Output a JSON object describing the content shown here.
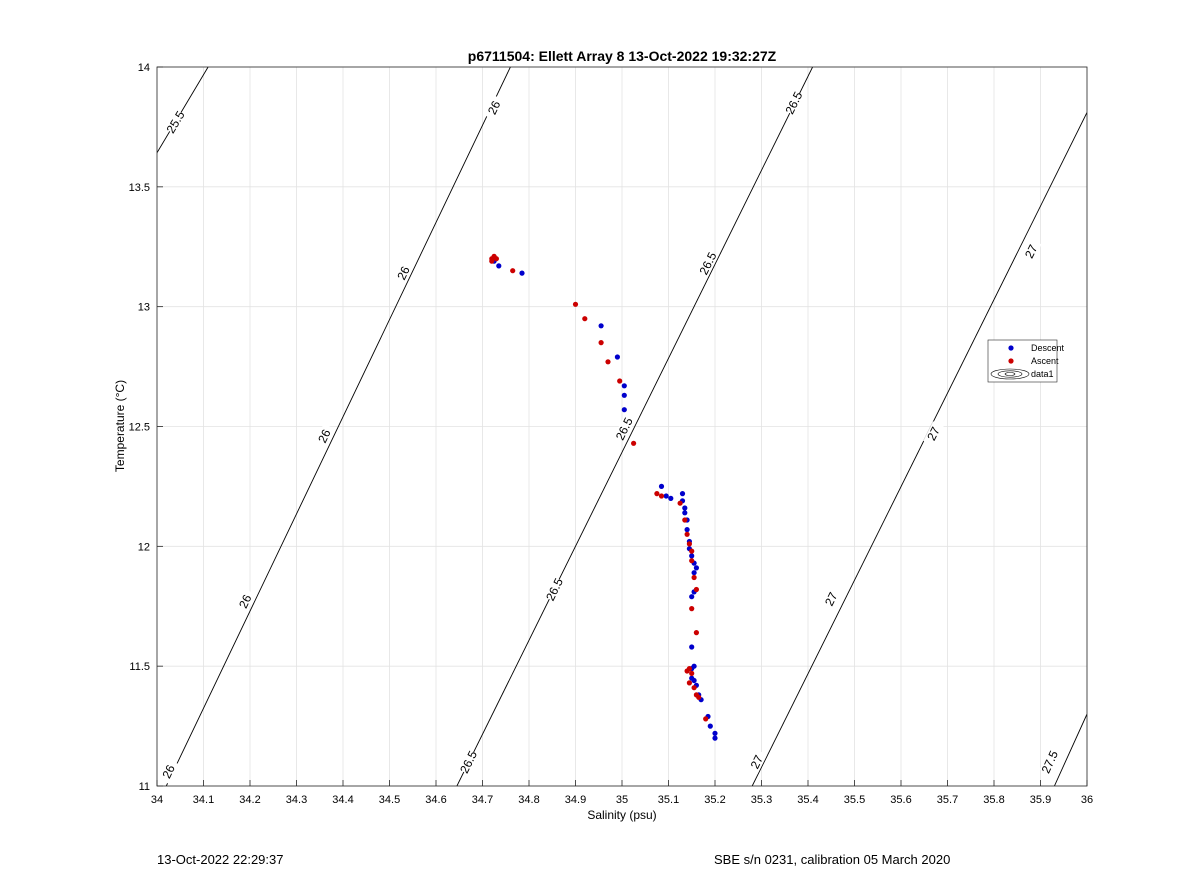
{
  "chart_data": {
    "type": "scatter",
    "title": "p6711504: Ellett Array 8 13-Oct-2022 19:32:27Z",
    "xlabel": "Salinity (psu)",
    "ylabel": "Temperature (°C)",
    "xlim": [
      34,
      36
    ],
    "ylim": [
      11,
      14
    ],
    "xticks": [
      "34",
      "34.1",
      "34.2",
      "34.3",
      "34.4",
      "34.5",
      "34.6",
      "34.7",
      "34.8",
      "34.9",
      "35",
      "35.1",
      "35.2",
      "35.3",
      "35.4",
      "35.5",
      "35.6",
      "35.7",
      "35.8",
      "35.9",
      "36"
    ],
    "yticks": [
      "11",
      "11.5",
      "12",
      "12.5",
      "13",
      "13.5",
      "14"
    ],
    "grid": true,
    "legend_position": "right",
    "series": [
      {
        "name": "Descent",
        "color": "#0000cc",
        "marker": "dot",
        "points": [
          [
            34.725,
            13.19
          ],
          [
            34.735,
            13.17
          ],
          [
            34.785,
            13.14
          ],
          [
            34.955,
            12.92
          ],
          [
            34.99,
            12.79
          ],
          [
            35.005,
            12.67
          ],
          [
            35.005,
            12.63
          ],
          [
            35.005,
            12.57
          ],
          [
            35.085,
            12.25
          ],
          [
            35.095,
            12.21
          ],
          [
            35.105,
            12.2
          ],
          [
            35.13,
            12.22
          ],
          [
            35.13,
            12.19
          ],
          [
            35.135,
            12.16
          ],
          [
            35.135,
            12.14
          ],
          [
            35.14,
            12.11
          ],
          [
            35.14,
            12.07
          ],
          [
            35.145,
            12.02
          ],
          [
            35.145,
            11.99
          ],
          [
            35.15,
            11.96
          ],
          [
            35.155,
            11.93
          ],
          [
            35.16,
            11.91
          ],
          [
            35.155,
            11.89
          ],
          [
            35.155,
            11.81
          ],
          [
            35.15,
            11.79
          ],
          [
            35.15,
            11.58
          ],
          [
            35.155,
            11.5
          ],
          [
            35.15,
            11.49
          ],
          [
            35.15,
            11.45
          ],
          [
            35.155,
            11.44
          ],
          [
            35.16,
            11.42
          ],
          [
            35.165,
            11.38
          ],
          [
            35.17,
            11.36
          ],
          [
            35.185,
            11.29
          ],
          [
            35.19,
            11.25
          ],
          [
            35.2,
            11.22
          ],
          [
            35.2,
            11.2
          ]
        ]
      },
      {
        "name": "Ascent",
        "color": "#cc0000",
        "marker": "dot",
        "points": [
          [
            34.72,
            13.2
          ],
          [
            34.725,
            13.21
          ],
          [
            34.73,
            13.2
          ],
          [
            34.72,
            13.19
          ],
          [
            34.765,
            13.15
          ],
          [
            34.9,
            13.01
          ],
          [
            34.92,
            12.95
          ],
          [
            34.955,
            12.85
          ],
          [
            34.97,
            12.77
          ],
          [
            34.995,
            12.69
          ],
          [
            35.025,
            12.43
          ],
          [
            35.075,
            12.22
          ],
          [
            35.085,
            12.21
          ],
          [
            35.125,
            12.18
          ],
          [
            35.135,
            12.11
          ],
          [
            35.14,
            12.05
          ],
          [
            35.145,
            12.01
          ],
          [
            35.15,
            11.98
          ],
          [
            35.15,
            11.94
          ],
          [
            35.155,
            11.87
          ],
          [
            35.16,
            11.82
          ],
          [
            35.15,
            11.74
          ],
          [
            35.16,
            11.64
          ],
          [
            35.14,
            11.48
          ],
          [
            35.145,
            11.49
          ],
          [
            35.15,
            11.47
          ],
          [
            35.145,
            11.43
          ],
          [
            35.155,
            11.41
          ],
          [
            35.16,
            11.38
          ],
          [
            35.165,
            11.37
          ],
          [
            35.18,
            11.28
          ]
        ]
      }
    ],
    "contours": [
      {
        "level": 25.5,
        "segments": [
          [
            [
              33.99,
              13.61
            ],
            [
              34.11,
              14.0
            ]
          ]
        ],
        "labels": [
          {
            "text": "25.5",
            "at": [
              34.04,
              13.77
            ]
          }
        ]
      },
      {
        "level": 26,
        "segments": [
          [
            [
              34.02,
              11.0
            ],
            [
              34.76,
              14.0
            ]
          ]
        ],
        "labels": [
          {
            "text": "26",
            "at": [
              34.025,
              11.06
            ]
          },
          {
            "text": "26",
            "at": [
              34.19,
              11.77
            ]
          },
          {
            "text": "26",
            "at": [
              34.36,
              12.46
            ]
          },
          {
            "text": "26",
            "at": [
              34.53,
              13.14
            ]
          },
          {
            "text": "26",
            "at": [
              34.725,
              13.83
            ]
          }
        ]
      },
      {
        "level": 26.5,
        "segments": [
          [
            [
              34.645,
              11.0
            ],
            [
              35.41,
              14.0
            ]
          ]
        ],
        "labels": [
          {
            "text": "26.5",
            "at": [
              34.67,
              11.1
            ]
          },
          {
            "text": "26.5",
            "at": [
              34.855,
              11.82
            ]
          },
          {
            "text": "26.5",
            "at": [
              35.005,
              12.49
            ]
          },
          {
            "text": "26.5",
            "at": [
              35.185,
              13.18
            ]
          },
          {
            "text": "26.5",
            "at": [
              35.37,
              13.85
            ]
          }
        ]
      },
      {
        "level": 27,
        "segments": [
          [
            [
              35.28,
              11.0
            ],
            [
              36.0,
              13.81
            ]
          ]
        ],
        "labels": [
          {
            "text": "27",
            "at": [
              35.29,
              11.1
            ]
          },
          {
            "text": "27",
            "at": [
              35.45,
              11.78
            ]
          },
          {
            "text": "27",
            "at": [
              35.67,
              12.47
            ]
          },
          {
            "text": "27",
            "at": [
              35.88,
              13.23
            ]
          }
        ]
      },
      {
        "level": 27.5,
        "segments": [
          [
            [
              35.93,
              11.0
            ],
            [
              36.0,
              11.3
            ]
          ]
        ],
        "labels": [
          {
            "text": "27.5",
            "at": [
              35.92,
              11.1
            ]
          }
        ]
      }
    ],
    "legend_entries": [
      "Descent",
      "Ascent",
      "data1"
    ]
  },
  "footer": {
    "timestamp": "13-Oct-2022 22:29:37",
    "calibration": "SBE s/n 0231, calibration 05 March 2020"
  }
}
